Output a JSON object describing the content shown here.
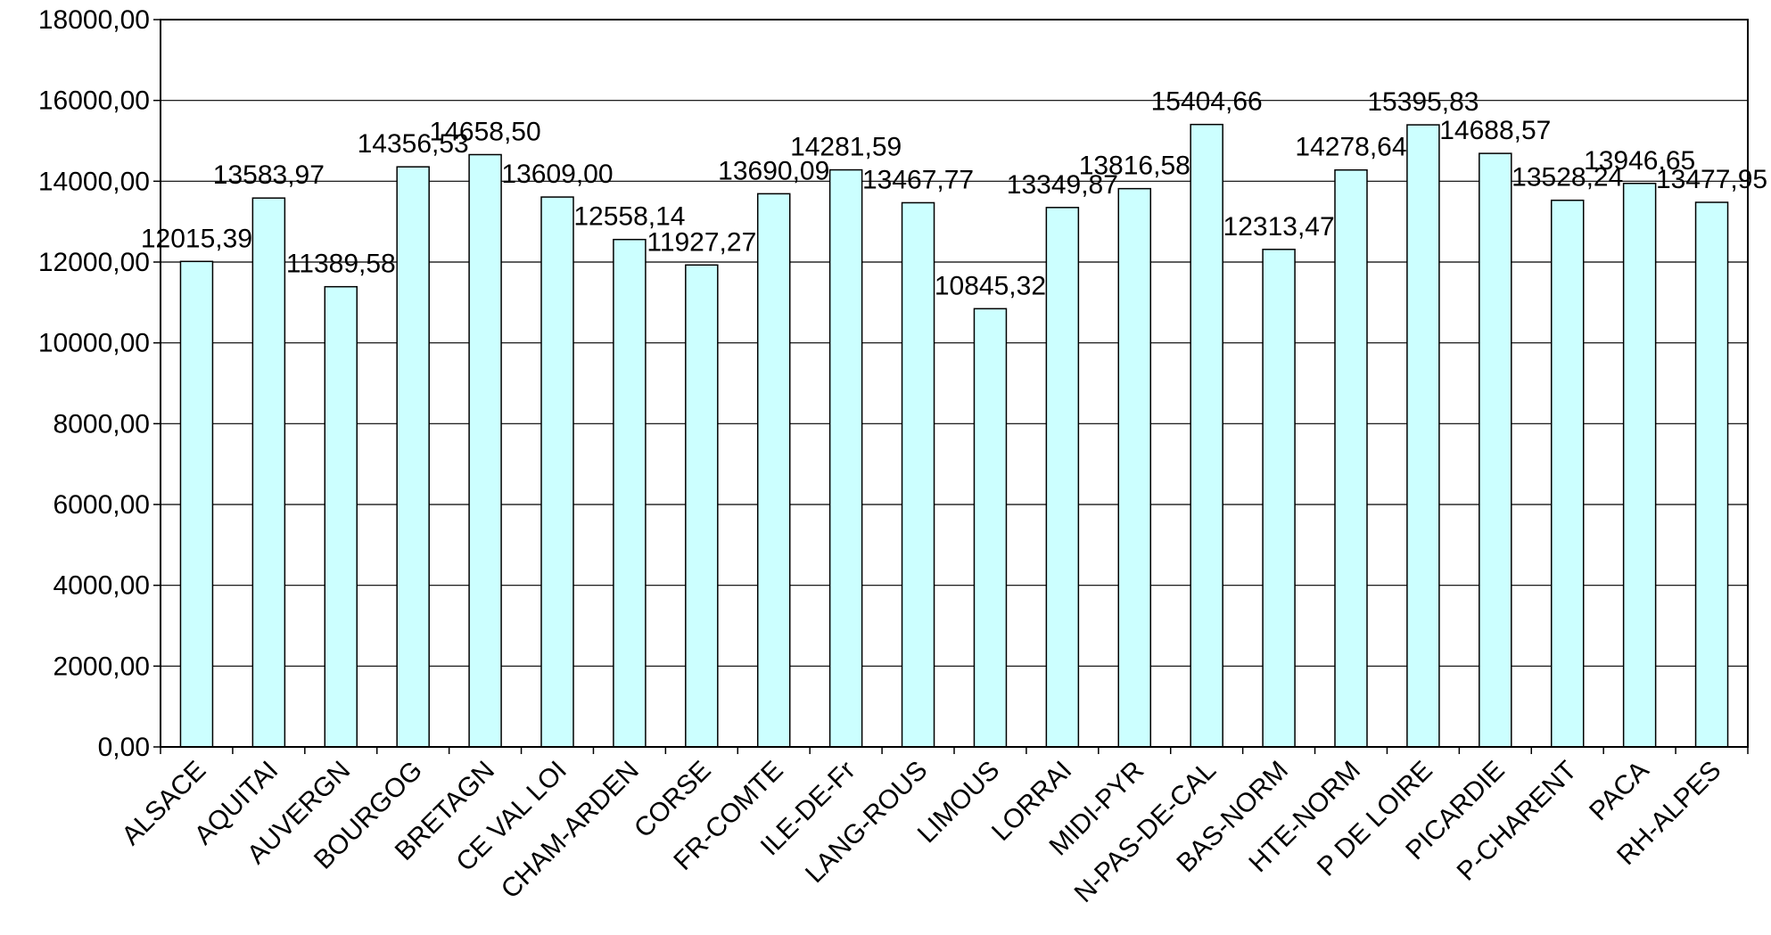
{
  "chart_data": {
    "type": "bar",
    "title": "",
    "xlabel": "",
    "ylabel": "",
    "ylim": [
      0,
      18000
    ],
    "yticks": [
      "0,00",
      "2000,00",
      "4000,00",
      "6000,00",
      "8000,00",
      "10000,00",
      "12000,00",
      "14000,00",
      "16000,00",
      "18000,00"
    ],
    "grid": true,
    "legend": "none",
    "colors": {
      "bar_fill": "#ccffff",
      "bar_stroke": "#000000",
      "grid": "#000000",
      "background": "#ffffff"
    },
    "categories": [
      "ALSACE",
      "AQUITAI",
      "AUVERGN",
      "BOURGOG",
      "BRETAGN",
      "CE VAL LOI",
      "CHAM-ARDEN",
      "CORSE",
      "FR-COMTE",
      "ILE-DE-Fr",
      "LANG-ROUS",
      "LIMOUS",
      "LORRAI",
      "MIDI-PYR",
      "N-PAS-DE-CAL",
      "BAS-NORM",
      "HTE-NORM",
      "P DE LOIRE",
      "PICARDIE",
      "P-CHARENT",
      "PACA",
      "RH-ALPES"
    ],
    "values": [
      12015.39,
      13583.97,
      11389.58,
      14356.53,
      14658.5,
      13609.0,
      12558.14,
      11927.27,
      13690.09,
      14281.59,
      13467.77,
      10845.32,
      13349.87,
      13816.58,
      15404.66,
      12313.47,
      14278.64,
      15395.83,
      14688.57,
      13528.24,
      13946.65,
      13477.95
    ],
    "data_labels": [
      "12015,39",
      "13583,97",
      "11389,58",
      "14356,53",
      "14658,50",
      "13609,00",
      "12558,14",
      "11927,27",
      "13690,09",
      "14281,59",
      "13467,77",
      "10845,32",
      "13349,87",
      "13816,58",
      "15404,66",
      "12313,47",
      "14278,64",
      "15395,83",
      "14688,57",
      "13528,24",
      "13946,65",
      "13477,95"
    ]
  }
}
